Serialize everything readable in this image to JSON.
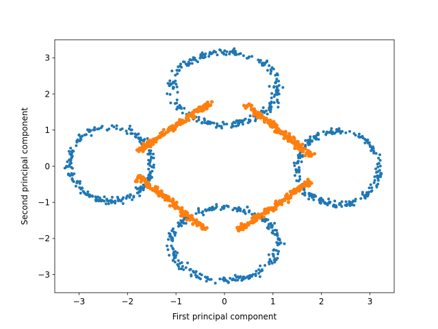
{
  "chart_data": {
    "type": "scatter",
    "title": "",
    "xlabel": "First principal component",
    "ylabel": "Second principal component",
    "xlim": [
      -3.5,
      3.5
    ],
    "ylim": [
      -3.5,
      3.5
    ],
    "x_ticks": [
      -3,
      -2,
      -1,
      0,
      1,
      2,
      3
    ],
    "y_ticks": [
      -3,
      -2,
      -1,
      0,
      1,
      2,
      3
    ],
    "x_tick_labels": [
      "−3",
      "−2",
      "−1",
      "0",
      "1",
      "2",
      "3"
    ],
    "y_tick_labels": [
      "−3",
      "−2",
      "−1",
      "0",
      "1",
      "2",
      "3"
    ],
    "grid": false,
    "legend": "none",
    "series": [
      {
        "color": "#1f77b4",
        "marker_size": 2,
        "rings": [
          {
            "cx": 0,
            "cy": 2.15,
            "rx": 1.1,
            "ry": 1.0,
            "n": 260
          },
          {
            "cx": 0,
            "cy": -2.15,
            "rx": 1.1,
            "ry": 1.0,
            "n": 260
          },
          {
            "cx": -2.35,
            "cy": 0.05,
            "rx": 0.85,
            "ry": 1.02,
            "n": 240
          },
          {
            "cx": 2.35,
            "cy": -0.05,
            "rx": 0.85,
            "ry": 1.02,
            "n": 240
          }
        ]
      },
      {
        "color": "#ff7f0e",
        "marker_size": 2.6,
        "segments": [
          {
            "x0": -1.78,
            "y0": 0.42,
            "x1": -0.25,
            "y1": 1.78,
            "n": 150
          },
          {
            "x0": 0.4,
            "y0": 1.75,
            "x1": 1.8,
            "y1": 0.28,
            "n": 150
          },
          {
            "x0": -1.78,
            "y0": -0.28,
            "x1": -0.4,
            "y1": -1.75,
            "n": 150
          },
          {
            "x0": 0.28,
            "y0": -1.78,
            "x1": 1.78,
            "y1": -0.42,
            "n": 150
          }
        ]
      }
    ]
  }
}
